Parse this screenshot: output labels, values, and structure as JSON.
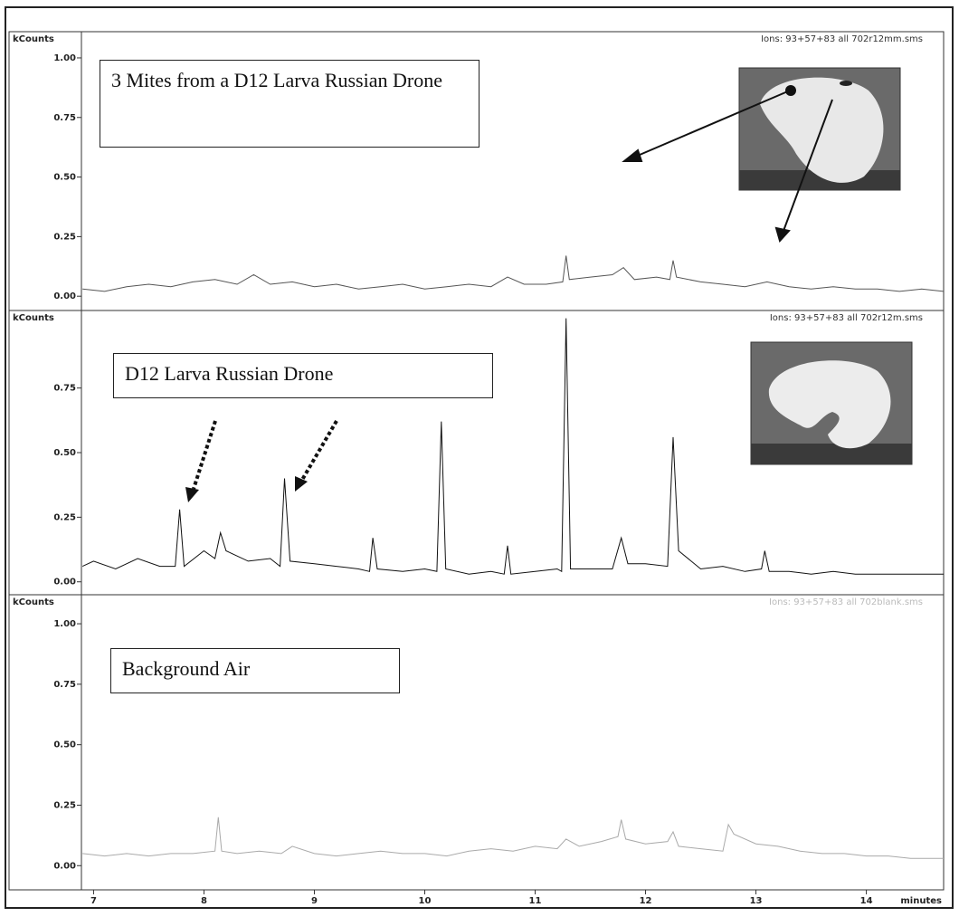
{
  "chart_data": [
    {
      "type": "line",
      "y_label": "kCounts",
      "subtitle": "Ions: 93+57+83 all 702r12mm.sms",
      "annotation": "3 Mites from a D12 Larva Russian Drone",
      "xlim": [
        6.89,
        14.7
      ],
      "ylim": [
        -0.06,
        1.11
      ],
      "yticks": [
        {
          "value": 0,
          "label": "0.00"
        },
        {
          "value": 0.25,
          "label": "0.25"
        },
        {
          "value": 0.5,
          "label": "0.50"
        },
        {
          "value": 0.75,
          "label": "0.75"
        },
        {
          "value": 1,
          "label": "1.00"
        }
      ],
      "x": [
        6.9,
        7.1,
        7.3,
        7.5,
        7.7,
        7.9,
        8.1,
        8.3,
        8.45,
        8.6,
        8.8,
        9.0,
        9.2,
        9.4,
        9.6,
        9.8,
        10.0,
        10.2,
        10.4,
        10.6,
        10.75,
        10.9,
        11.1,
        11.25,
        11.28,
        11.31,
        11.5,
        11.7,
        11.8,
        11.9,
        12.1,
        12.22,
        12.25,
        12.28,
        12.5,
        12.7,
        12.9,
        13.1,
        13.3,
        13.5,
        13.7,
        13.9,
        14.1,
        14.3,
        14.5,
        14.7
      ],
      "series": [
        {
          "color": "#555555",
          "values": [
            0.03,
            0.02,
            0.04,
            0.05,
            0.04,
            0.06,
            0.07,
            0.05,
            0.09,
            0.05,
            0.06,
            0.04,
            0.05,
            0.03,
            0.04,
            0.05,
            0.03,
            0.04,
            0.05,
            0.04,
            0.08,
            0.05,
            0.05,
            0.06,
            0.17,
            0.07,
            0.08,
            0.09,
            0.12,
            0.07,
            0.08,
            0.07,
            0.15,
            0.08,
            0.06,
            0.05,
            0.04,
            0.06,
            0.04,
            0.03,
            0.04,
            0.03,
            0.03,
            0.02,
            0.03,
            0.02
          ]
        }
      ]
    },
    {
      "type": "line",
      "y_label": "kCounts",
      "subtitle": "Ions: 93+57+83 all 702r12m.sms",
      "annotation": "D12 Larva Russian Drone",
      "xlim": [
        6.89,
        14.7
      ],
      "ylim": [
        -0.05,
        1.05
      ],
      "yticks": [
        {
          "value": 0,
          "label": "0.00"
        },
        {
          "value": 0.25,
          "label": "0.25"
        },
        {
          "value": 0.5,
          "label": "0.50"
        },
        {
          "value": 0.75,
          "label": "0.75"
        }
      ],
      "x": [
        6.9,
        7.0,
        7.2,
        7.4,
        7.6,
        7.74,
        7.78,
        7.82,
        8.0,
        8.1,
        8.15,
        8.2,
        8.4,
        8.6,
        8.69,
        8.73,
        8.78,
        9.0,
        9.2,
        9.4,
        9.5,
        9.53,
        9.57,
        9.8,
        10.0,
        10.11,
        10.15,
        10.19,
        10.4,
        10.6,
        10.72,
        10.75,
        10.78,
        11.0,
        11.2,
        11.24,
        11.28,
        11.32,
        11.5,
        11.7,
        11.78,
        11.84,
        12.0,
        12.2,
        12.25,
        12.3,
        12.5,
        12.7,
        12.9,
        13.05,
        13.08,
        13.12,
        13.3,
        13.5,
        13.7,
        13.9,
        14.1,
        14.3,
        14.5,
        14.7
      ],
      "series": [
        {
          "color": "#111111",
          "values": [
            0.06,
            0.08,
            0.05,
            0.09,
            0.06,
            0.06,
            0.28,
            0.06,
            0.12,
            0.09,
            0.19,
            0.12,
            0.08,
            0.09,
            0.06,
            0.4,
            0.08,
            0.07,
            0.06,
            0.05,
            0.04,
            0.17,
            0.05,
            0.04,
            0.05,
            0.04,
            0.62,
            0.05,
            0.03,
            0.04,
            0.03,
            0.14,
            0.03,
            0.04,
            0.05,
            0.04,
            1.02,
            0.05,
            0.05,
            0.05,
            0.17,
            0.07,
            0.07,
            0.06,
            0.56,
            0.12,
            0.05,
            0.06,
            0.04,
            0.05,
            0.12,
            0.04,
            0.04,
            0.03,
            0.04,
            0.03,
            0.03,
            0.03,
            0.03,
            0.03
          ]
        }
      ]
    },
    {
      "type": "line",
      "y_label": "kCounts",
      "subtitle": "Ions: 93+57+83 all 702blank.sms",
      "annotation": "Background Air",
      "x_label": "minutes",
      "xlim": [
        6.89,
        14.7
      ],
      "ylim": [
        -0.1,
        1.12
      ],
      "yticks": [
        {
          "value": 0,
          "label": "0.00"
        },
        {
          "value": 0.25,
          "label": "0.25"
        },
        {
          "value": 0.5,
          "label": "0.50"
        },
        {
          "value": 0.75,
          "label": "0.75"
        },
        {
          "value": 1,
          "label": "1.00"
        }
      ],
      "xticks": [
        7,
        8,
        9,
        10,
        11,
        12,
        13,
        14
      ],
      "x": [
        6.9,
        7.1,
        7.3,
        7.5,
        7.7,
        7.9,
        8.1,
        8.13,
        8.16,
        8.3,
        8.5,
        8.7,
        8.8,
        9.0,
        9.2,
        9.4,
        9.6,
        9.8,
        10.0,
        10.2,
        10.4,
        10.6,
        10.8,
        11.0,
        11.2,
        11.28,
        11.4,
        11.6,
        11.75,
        11.78,
        11.82,
        12.0,
        12.2,
        12.25,
        12.3,
        12.5,
        12.7,
        12.75,
        12.8,
        13.0,
        13.2,
        13.4,
        13.6,
        13.8,
        14.0,
        14.2,
        14.4,
        14.7
      ],
      "series": [
        {
          "color": "#aaaaaa",
          "values": [
            0.05,
            0.04,
            0.05,
            0.04,
            0.05,
            0.05,
            0.06,
            0.2,
            0.06,
            0.05,
            0.06,
            0.05,
            0.08,
            0.05,
            0.04,
            0.05,
            0.06,
            0.05,
            0.05,
            0.04,
            0.06,
            0.07,
            0.06,
            0.08,
            0.07,
            0.11,
            0.08,
            0.1,
            0.12,
            0.19,
            0.11,
            0.09,
            0.1,
            0.14,
            0.08,
            0.07,
            0.06,
            0.17,
            0.13,
            0.09,
            0.08,
            0.06,
            0.05,
            0.05,
            0.04,
            0.04,
            0.03,
            0.03
          ]
        }
      ]
    }
  ]
}
